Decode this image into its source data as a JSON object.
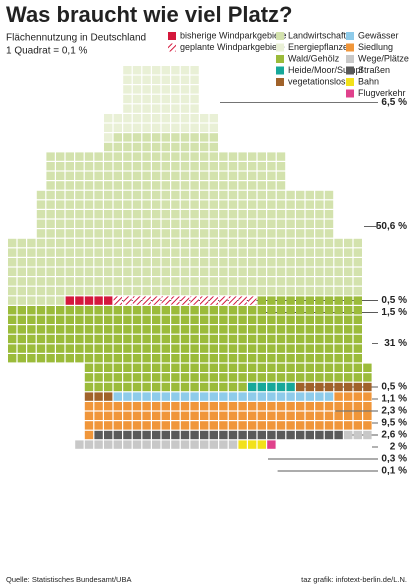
{
  "chart_data": {
    "type": "waffle",
    "title": "Was braucht wie viel Platz?",
    "subtitle": "Flächennutzung in Deutschland",
    "unit_note": "1 Quadrat = 0,1 %",
    "source": "Quelle: Statistisches Bundesamt/UBA",
    "credit": "taz grafik: infotext-berlin.de/L.N.",
    "series": [
      {
        "name": "bisherige Windparkgebiete",
        "color": "#d4183c",
        "values": [
          0.5
        ],
        "value_labels": [
          "0,5 %"
        ]
      },
      {
        "name": "geplante Windparkgebiete",
        "color": "#d4183c",
        "hatched": true,
        "values": [
          1.5
        ],
        "value_labels": [
          "1,5 %"
        ]
      },
      {
        "name": "Landwirtschaft",
        "color": "#d3e2ad",
        "values": [
          50.6
        ],
        "value_labels": [
          "50,6 %"
        ]
      },
      {
        "name": "Energiepflanzen",
        "color": "#e9f0d6",
        "values": [
          6.5
        ],
        "value_labels": [
          "6,5 %"
        ]
      },
      {
        "name": "Wald/Gehölz",
        "color": "#9bbb3a",
        "values": [
          31
        ],
        "value_labels": [
          "31 %"
        ]
      },
      {
        "name": "Heide/Moor/Sumpf",
        "color": "#17a89a",
        "values": [
          0.5
        ],
        "value_labels": [
          "0,5 %"
        ]
      },
      {
        "name": "vegetationslos",
        "color": "#a0622a",
        "values": [
          1.1
        ],
        "value_labels": [
          "1,1 %"
        ]
      },
      {
        "name": "Gewässer",
        "color": "#8ecbea",
        "values": [
          2.3
        ],
        "value_labels": [
          "2,3 %"
        ]
      },
      {
        "name": "Siedlung",
        "color": "#f0963a",
        "values": [
          9.5
        ],
        "value_labels": [
          "9,5 %"
        ]
      },
      {
        "name": "Wege/Plätze",
        "color": "#c8c8c8",
        "values": [
          2
        ],
        "value_labels": [
          "2 %"
        ]
      },
      {
        "name": "Straßen",
        "color": "#5a5a5a",
        "values": [
          2.6
        ],
        "value_labels": [
          "2,6 %"
        ]
      },
      {
        "name": "Bahn",
        "color": "#f2e11a",
        "values": [
          0.3
        ],
        "value_labels": [
          "0,3 %"
        ]
      },
      {
        "name": "Flugverkehr",
        "color": "#e0418c",
        "values": [
          0.1
        ],
        "value_labels": [
          "0,1 %"
        ]
      }
    ]
  }
}
